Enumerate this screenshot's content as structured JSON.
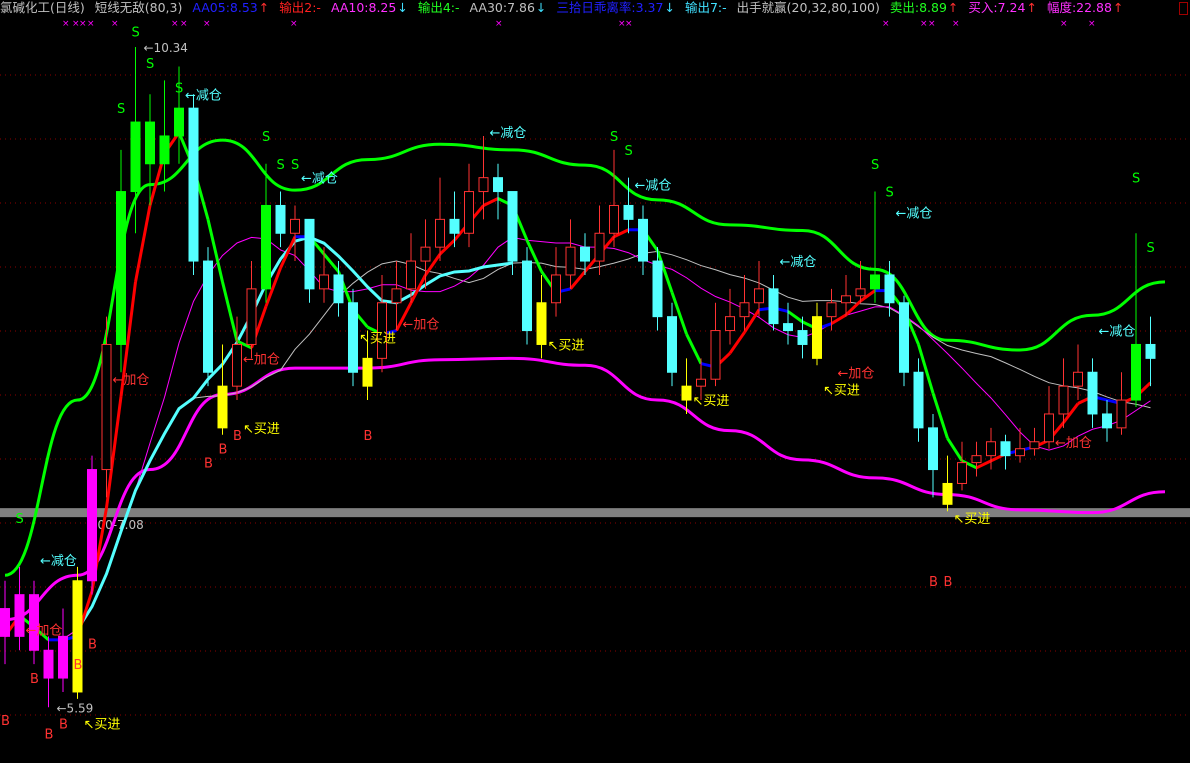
{
  "header": {
    "items": [
      {
        "text": "氯碱化工(日线)",
        "color": "#c0c0c0"
      },
      {
        "text": "短线无敌(80,3)",
        "color": "#c0c0c0"
      },
      {
        "text": "AA05:8.53",
        "color": "#2020ff",
        "arrow": "↑",
        "arrow_color": "#ff3030"
      },
      {
        "text": "输出2:-",
        "color": "#ff2020"
      },
      {
        "text": "AA10:8.25",
        "color": "#ff30ff",
        "arrow": "↓",
        "arrow_color": "#40e0ff"
      },
      {
        "text": "输出4:-",
        "color": "#20ff20"
      },
      {
        "text": "AA30:7.86",
        "color": "#c0c0c0",
        "arrow": "↓",
        "arrow_color": "#40e0ff"
      },
      {
        "text": "三拾日乖离率:3.37",
        "color": "#2020ff",
        "arrow": "↓",
        "arrow_color": "#40e0ff"
      },
      {
        "text": "输出7:-",
        "color": "#40e0ff"
      },
      {
        "text": "出手就赢(20,32,80,100)",
        "color": "#c0c0c0"
      },
      {
        "text": "卖出:8.89",
        "color": "#20ff20",
        "arrow": "↑",
        "arrow_color": "#ff3030"
      },
      {
        "text": "买入:7.24",
        "color": "#ff30ff",
        "arrow": "↑",
        "arrow_color": "#ff3030"
      },
      {
        "text": "幅度:22.88",
        "color": "#ff30ff",
        "arrow": "↑",
        "arrow_color": "#ff3030"
      }
    ]
  },
  "colors": {
    "up": "#ff3232",
    "down": "#54ffff",
    "green_bar": "#00ff00",
    "yellow_bar": "#ffff00",
    "magenta_bar": "#ff00ff",
    "upper_band": "#00ff00",
    "lower_band": "#ff00ff",
    "grid": "#8b0000",
    "support_band": "#808080"
  },
  "chart_data": {
    "type": "candlestick",
    "title": "氯碱化工(日线)",
    "ylim": [
      5.4,
      10.5
    ],
    "grid": true,
    "candles": [
      [
        6.3,
        6.5,
        5.9,
        6.1
      ],
      [
        6.1,
        6.6,
        6.0,
        6.4
      ],
      [
        6.4,
        6.5,
        5.9,
        6.0
      ],
      [
        6.0,
        6.1,
        5.59,
        5.8
      ],
      [
        5.8,
        6.3,
        5.7,
        6.1
      ],
      [
        5.7,
        6.6,
        5.65,
        6.5
      ],
      [
        6.5,
        7.4,
        6.4,
        7.3
      ],
      [
        7.3,
        8.4,
        7.1,
        8.2
      ],
      [
        8.2,
        9.6,
        8.0,
        9.3
      ],
      [
        9.3,
        10.34,
        9.0,
        9.8
      ],
      [
        9.8,
        10.0,
        9.2,
        9.5
      ],
      [
        9.5,
        10.1,
        9.3,
        9.7
      ],
      [
        9.7,
        10.2,
        9.5,
        9.9
      ],
      [
        9.9,
        10.0,
        8.7,
        8.8
      ],
      [
        8.8,
        8.9,
        7.9,
        8.0
      ],
      [
        7.6,
        8.2,
        7.55,
        7.9
      ],
      [
        7.9,
        8.4,
        7.8,
        8.2
      ],
      [
        8.2,
        8.8,
        8.1,
        8.6
      ],
      [
        8.6,
        9.5,
        8.5,
        9.2
      ],
      [
        9.2,
        9.3,
        8.9,
        9.0
      ],
      [
        9.0,
        9.2,
        8.8,
        9.1
      ],
      [
        9.1,
        9.1,
        8.5,
        8.6
      ],
      [
        8.6,
        8.9,
        8.5,
        8.7
      ],
      [
        8.7,
        8.8,
        8.4,
        8.5
      ],
      [
        8.5,
        8.6,
        7.9,
        8.0
      ],
      [
        7.9,
        8.3,
        7.8,
        8.1
      ],
      [
        8.1,
        8.7,
        8.0,
        8.5
      ],
      [
        8.5,
        8.8,
        8.3,
        8.6
      ],
      [
        8.6,
        9.0,
        8.5,
        8.8
      ],
      [
        8.8,
        9.1,
        8.6,
        8.9
      ],
      [
        8.9,
        9.4,
        8.8,
        9.1
      ],
      [
        9.1,
        9.3,
        8.9,
        9.0
      ],
      [
        9.0,
        9.5,
        8.9,
        9.3
      ],
      [
        9.3,
        9.7,
        9.1,
        9.4
      ],
      [
        9.4,
        9.5,
        9.1,
        9.3
      ],
      [
        9.3,
        9.3,
        8.7,
        8.8
      ],
      [
        8.8,
        8.9,
        8.2,
        8.3
      ],
      [
        8.2,
        8.7,
        8.1,
        8.5
      ],
      [
        8.5,
        8.9,
        8.4,
        8.7
      ],
      [
        8.7,
        9.1,
        8.6,
        8.9
      ],
      [
        8.9,
        9.0,
        8.7,
        8.8
      ],
      [
        8.8,
        9.2,
        8.7,
        9.0
      ],
      [
        9.0,
        9.6,
        8.9,
        9.2
      ],
      [
        9.2,
        9.4,
        9.0,
        9.1
      ],
      [
        9.1,
        9.2,
        8.7,
        8.8
      ],
      [
        8.8,
        8.9,
        8.3,
        8.4
      ],
      [
        8.4,
        8.5,
        7.9,
        8.0
      ],
      [
        7.8,
        8.1,
        7.7,
        7.9
      ],
      [
        7.9,
        8.1,
        7.8,
        7.95
      ],
      [
        7.95,
        8.5,
        7.9,
        8.3
      ],
      [
        8.3,
        8.6,
        8.2,
        8.4
      ],
      [
        8.4,
        8.7,
        8.3,
        8.5
      ],
      [
        8.5,
        8.8,
        8.4,
        8.6
      ],
      [
        8.6,
        8.7,
        8.3,
        8.35
      ],
      [
        8.35,
        8.5,
        8.2,
        8.3
      ],
      [
        8.3,
        8.4,
        8.1,
        8.2
      ],
      [
        8.1,
        8.5,
        8.05,
        8.4
      ],
      [
        8.4,
        8.6,
        8.3,
        8.5
      ],
      [
        8.5,
        8.7,
        8.4,
        8.55
      ],
      [
        8.55,
        8.8,
        8.5,
        8.6
      ],
      [
        8.6,
        9.3,
        8.5,
        8.7
      ],
      [
        8.7,
        8.8,
        8.4,
        8.5
      ],
      [
        8.5,
        8.55,
        7.9,
        8.0
      ],
      [
        8.0,
        8.1,
        7.5,
        7.6
      ],
      [
        7.6,
        7.7,
        7.1,
        7.3
      ],
      [
        7.05,
        7.4,
        7.0,
        7.2
      ],
      [
        7.2,
        7.5,
        7.15,
        7.35
      ],
      [
        7.35,
        7.5,
        7.25,
        7.4
      ],
      [
        7.4,
        7.6,
        7.3,
        7.5
      ],
      [
        7.5,
        7.55,
        7.3,
        7.4
      ],
      [
        7.4,
        7.6,
        7.35,
        7.45
      ],
      [
        7.45,
        7.6,
        7.4,
        7.5
      ],
      [
        7.5,
        7.9,
        7.45,
        7.7
      ],
      [
        7.7,
        8.1,
        7.6,
        7.9
      ],
      [
        7.9,
        8.2,
        7.8,
        8.0
      ],
      [
        8.0,
        8.1,
        7.6,
        7.7
      ],
      [
        7.7,
        7.8,
        7.5,
        7.6
      ],
      [
        7.6,
        8.0,
        7.55,
        7.8
      ],
      [
        7.8,
        9.0,
        7.75,
        8.2
      ],
      [
        8.2,
        8.4,
        7.9,
        8.1
      ]
    ],
    "green_bars": [
      8,
      9,
      10,
      11,
      12,
      18,
      60,
      78
    ],
    "yellow_bars": [
      5,
      15,
      25,
      37,
      47,
      56,
      65
    ],
    "magenta_bars": [
      0,
      1,
      2,
      3,
      4,
      6
    ],
    "upper_band": [
      6.54,
      7.8,
      9.35,
      9.67,
      9.31,
      9.53,
      9.64,
      9.6,
      9.49,
      9.24,
      9.06,
      9.02,
      8.74,
      8.23,
      8.16,
      8.41,
      8.65
    ],
    "lower_band": [
      6.22,
      6.54,
      7.3,
      7.84,
      8.03,
      8.03,
      8.09,
      8.1,
      8.05,
      7.8,
      7.58,
      7.37,
      7.24,
      7.12,
      7.01,
      6.99,
      7.14
    ],
    "band_step": 5,
    "support_band": {
      "low": 7.0,
      "high": 7.08,
      "label": "7.00-7.08"
    },
    "price_labels": [
      {
        "index": 9,
        "price": 10.34,
        "text": "10.34"
      },
      {
        "index": 3,
        "price": 5.59,
        "text": "5.59"
      }
    ],
    "signal_text": {
      "reduce": "←减仓",
      "add": "←加仓",
      "buy": "买进",
      "sell": "S",
      "b": "B"
    },
    "signals": [
      {
        "type": "reduce",
        "index": 2,
        "price": 6.65
      },
      {
        "type": "reduce",
        "index": 12,
        "price": 10.0
      },
      {
        "type": "reduce",
        "index": 20,
        "price": 9.4
      },
      {
        "type": "reduce",
        "index": 33,
        "price": 9.73
      },
      {
        "type": "reduce",
        "index": 43,
        "price": 9.35
      },
      {
        "type": "reduce",
        "index": 53,
        "price": 8.8
      },
      {
        "type": "reduce",
        "index": 61,
        "price": 9.15
      },
      {
        "type": "reduce",
        "index": 75,
        "price": 8.3
      },
      {
        "type": "add",
        "index": 1,
        "price": 6.15
      },
      {
        "type": "add",
        "index": 7,
        "price": 7.95
      },
      {
        "type": "add",
        "index": 16,
        "price": 8.1
      },
      {
        "type": "add",
        "index": 27,
        "price": 8.35
      },
      {
        "type": "add",
        "index": 57,
        "price": 8.0
      },
      {
        "type": "add",
        "index": 72,
        "price": 7.5
      },
      {
        "type": "buy",
        "index": 5,
        "price": 5.7
      },
      {
        "type": "buy",
        "index": 16,
        "price": 7.6
      },
      {
        "type": "buy",
        "index": 24,
        "price": 8.25
      },
      {
        "type": "buy",
        "index": 37,
        "price": 8.2
      },
      {
        "type": "buy",
        "index": 47,
        "price": 7.8
      },
      {
        "type": "buy",
        "index": 56,
        "price": 7.95
      },
      {
        "type": "buy",
        "index": 65,
        "price": 6.95
      },
      {
        "type": "sell",
        "index": 1,
        "price": 6.95
      },
      {
        "type": "sell",
        "index": 8,
        "price": 9.9
      },
      {
        "type": "sell",
        "index": 9,
        "price": 10.45
      },
      {
        "type": "sell",
        "index": 10,
        "price": 10.25
      },
      {
        "type": "sell",
        "index": 12,
        "price": 10.05
      },
      {
        "type": "sell",
        "index": 18,
        "price": 9.7
      },
      {
        "type": "sell",
        "index": 19,
        "price": 9.5
      },
      {
        "type": "sell",
        "index": 20,
        "price": 9.5
      },
      {
        "type": "sell",
        "index": 42,
        "price": 9.7
      },
      {
        "type": "sell",
        "index": 43,
        "price": 9.6
      },
      {
        "type": "sell",
        "index": 60,
        "price": 9.5
      },
      {
        "type": "sell",
        "index": 61,
        "price": 9.3
      },
      {
        "type": "sell",
        "index": 78,
        "price": 9.4
      },
      {
        "type": "sell",
        "index": 79,
        "price": 8.9
      },
      {
        "type": "b",
        "index": 0,
        "price": 5.5
      },
      {
        "type": "b",
        "index": 2,
        "price": 5.8
      },
      {
        "type": "b",
        "index": 3,
        "price": 5.4
      },
      {
        "type": "b",
        "index": 4,
        "price": 5.55
      },
      {
        "type": "b",
        "index": 5,
        "price": 5.9
      },
      {
        "type": "b",
        "index": 6,
        "price": 6.05
      },
      {
        "type": "b",
        "index": 14,
        "price": 7.35
      },
      {
        "type": "b",
        "index": 15,
        "price": 7.45
      },
      {
        "type": "b",
        "index": 16,
        "price": 7.55
      },
      {
        "type": "b",
        "index": 25,
        "price": 7.55
      },
      {
        "type": "b",
        "index": 64,
        "price": 6.5
      },
      {
        "type": "b",
        "index": 65,
        "price": 6.5
      }
    ]
  }
}
